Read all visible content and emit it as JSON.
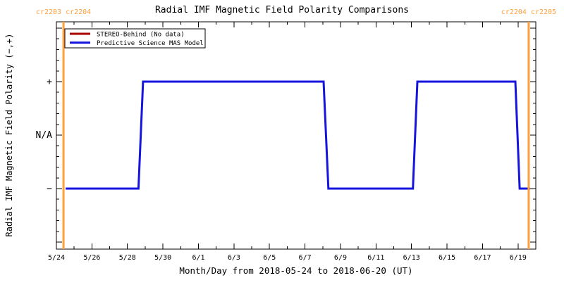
{
  "colors": {
    "background": "#ffffff",
    "axis": "#000000",
    "orange": "#ffa040",
    "stereo_red": "#aa0000",
    "mas_blue": "#1515dd"
  },
  "chart_data": {
    "type": "line-step",
    "title": "Radial IMF Magnetic Field Polarity Comparisons",
    "x_axis": {
      "label": "Month/Day from 2018-05-24 to 2018-06-20 (UT)",
      "start_date": "2018-05-24",
      "end_date": "2018-06-20",
      "range_days": [
        0,
        27
      ],
      "minor_tick_step_days": 1,
      "major_ticks": [
        {
          "day": 0,
          "label": "5/24"
        },
        {
          "day": 2,
          "label": "5/26"
        },
        {
          "day": 4,
          "label": "5/28"
        },
        {
          "day": 6,
          "label": "5/30"
        },
        {
          "day": 8,
          "label": "6/1"
        },
        {
          "day": 10,
          "label": "6/3"
        },
        {
          "day": 12,
          "label": "6/5"
        },
        {
          "day": 14,
          "label": "6/7"
        },
        {
          "day": 16,
          "label": "6/9"
        },
        {
          "day": 18,
          "label": "6/11"
        },
        {
          "day": 20,
          "label": "6/13"
        },
        {
          "day": 22,
          "label": "6/15"
        },
        {
          "day": 24,
          "label": "6/17"
        },
        {
          "day": 26,
          "label": "6/19"
        }
      ]
    },
    "y_axis": {
      "label": "Radial IMF Magnetic Field Polarity (−,+)",
      "range": [
        -2.13,
        2.12
      ],
      "major_step": 1,
      "minor_step": 0.2,
      "ticks": [
        {
          "value": 1,
          "label": "+"
        },
        {
          "value": 0,
          "label": "N/A"
        },
        {
          "value": -1,
          "label": "−"
        }
      ]
    },
    "series": [
      {
        "name": "STEREO-Behind (No data)",
        "color": "#aa0000",
        "points": []
      },
      {
        "name": "Predictive Science MAS Model",
        "color": "#1515dd",
        "points": [
          [
            0.52,
            -1
          ],
          [
            4.62,
            -1
          ],
          [
            4.88,
            1
          ],
          [
            15.05,
            1
          ],
          [
            15.32,
            -1
          ],
          [
            20.08,
            -1
          ],
          [
            20.33,
            1
          ],
          [
            25.85,
            1
          ],
          [
            26.09,
            -1
          ],
          [
            26.68,
            -1
          ]
        ]
      }
    ],
    "vlines": [
      {
        "day": 0.4,
        "label": "cr2203 cr2204",
        "color": "#ffa040"
      },
      {
        "day": 26.6,
        "label": "cr2204 cr2205",
        "color": "#ffa040"
      }
    ],
    "legend": {
      "position": "top-left",
      "border": true
    }
  }
}
